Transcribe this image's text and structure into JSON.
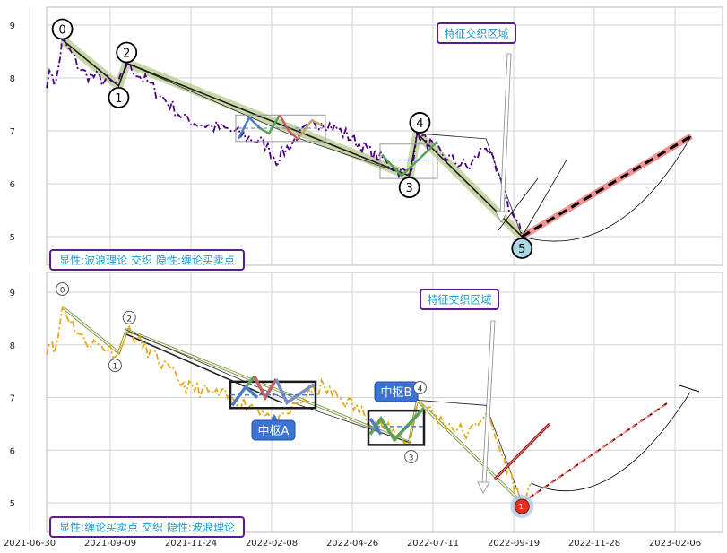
{
  "chart_data": [
    {
      "type": "line",
      "panel": "top",
      "ylim": [
        4.7,
        9.3
      ],
      "yticks": [
        "5",
        "6",
        "7",
        "8",
        "9"
      ],
      "grid": true,
      "panel_label": "显性:波浪理论 交织 隐性:缠论买卖点",
      "region_label": "特征交织区域",
      "wave_points": [
        {
          "label": "0",
          "x": "2021-07-14",
          "y": 8.72
        },
        {
          "label": "1",
          "x": "2021-09-02",
          "y": 7.85
        },
        {
          "label": "2",
          "x": "2021-09-09",
          "y": 8.28
        },
        {
          "label": "3",
          "x": "2022-05-18",
          "y": 6.15
        },
        {
          "label": "4",
          "x": "2022-05-25",
          "y": 6.95
        },
        {
          "label": "5",
          "x": "2022-08-26",
          "y": 5.0
        }
      ],
      "price_series": {
        "name": "",
        "color": "#4b0082",
        "style": "dash-dot"
      },
      "colors": {
        "main": "#4b0082",
        "wave_highlight": "#b5c98a",
        "target": "#f08080"
      }
    },
    {
      "type": "line",
      "panel": "bottom",
      "ylim": [
        4.7,
        9.3
      ],
      "yticks": [
        "5",
        "6",
        "7",
        "8",
        "9"
      ],
      "grid": true,
      "panel_label": "显性:缠论买卖点 交织 隐性:波浪理论",
      "region_label": "特征交织区域",
      "pivot_labels": [
        "中枢A",
        "中枢B"
      ],
      "buy_point_label": "1",
      "wave_points": [
        {
          "label": "0",
          "x": "2021-07-14",
          "y": 8.72
        },
        {
          "label": "1",
          "x": "2021-09-02",
          "y": 7.85
        },
        {
          "label": "2",
          "x": "2021-09-09",
          "y": 8.28
        },
        {
          "label": "3",
          "x": "2022-05-18",
          "y": 6.15
        },
        {
          "label": "4",
          "x": "2022-05-25",
          "y": 6.95
        }
      ],
      "price_series": {
        "name": "",
        "color": "#e6a817",
        "style": "dash-dot"
      },
      "colors": {
        "main": "#e6a817",
        "pivot_box": "#1a1a1a",
        "buy_point": "#e0321c"
      }
    }
  ],
  "x_axis": {
    "ticks": [
      "2021-06-30",
      "2021-09-09",
      "2021-11-24",
      "2022-02-08",
      "2022-04-26",
      "2022-07-11",
      "2022-09-19",
      "2022-11-28",
      "2023-02-06"
    ]
  }
}
